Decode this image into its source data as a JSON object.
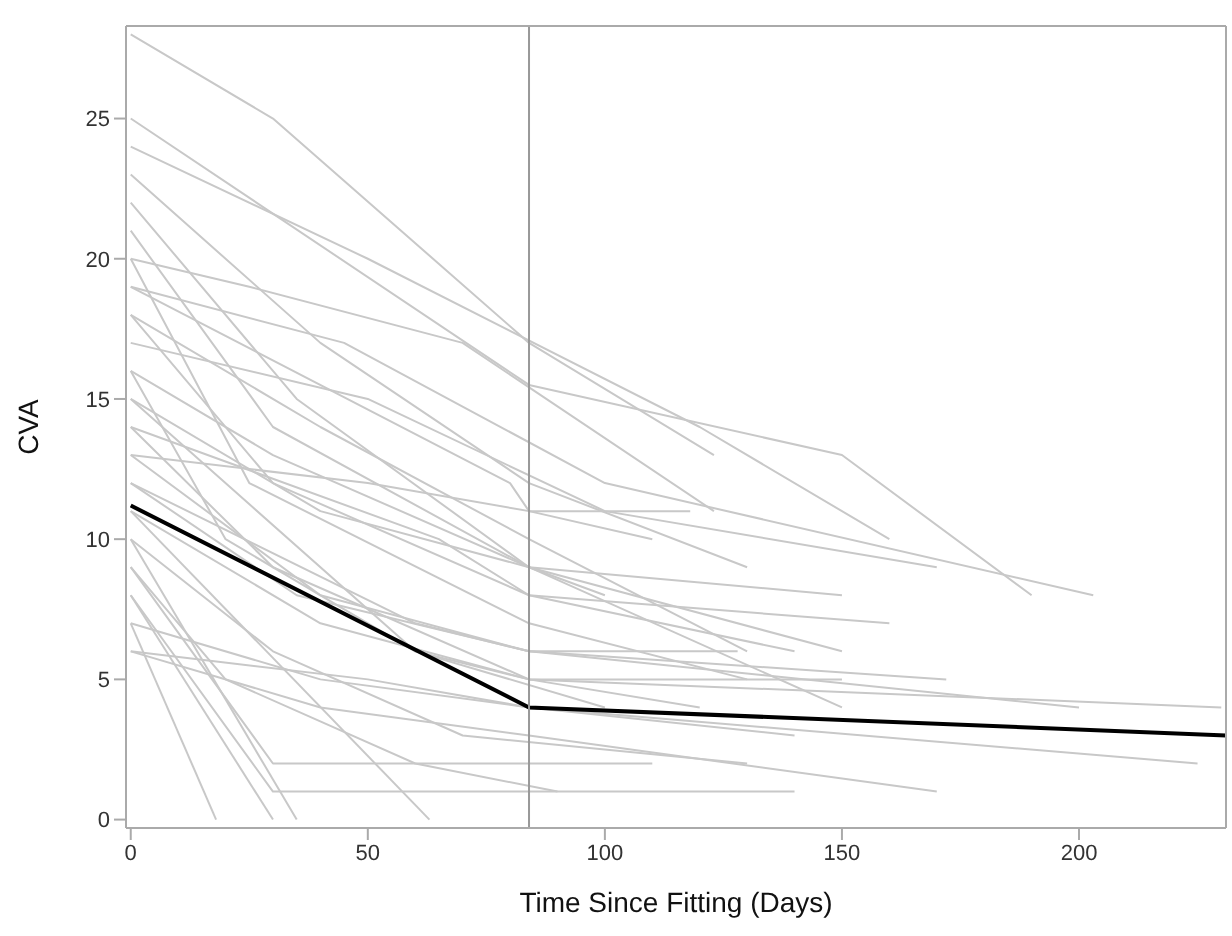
{
  "chart_data": {
    "type": "line",
    "xlabel": "Time Since Fitting (Days)",
    "ylabel": "CVA",
    "xlim": [
      -1,
      231
    ],
    "xticks": [
      0,
      50,
      100,
      150,
      200
    ],
    "ylim": [
      -0.3,
      28.3
    ],
    "yticks": [
      0,
      5,
      10,
      15,
      20,
      25
    ],
    "marker": "none",
    "line_style": "solid",
    "ref_lines": [
      {
        "axis": "x",
        "value": 84,
        "color": "#999999"
      }
    ],
    "series": [
      {
        "color": "#c8c8c8",
        "x": [
          0,
          30,
          84,
          123
        ],
        "values": [
          28,
          25,
          17,
          13
        ]
      },
      {
        "color": "#c8c8c8",
        "x": [
          0,
          84,
          150,
          190
        ],
        "values": [
          25,
          15.5,
          13,
          8
        ]
      },
      {
        "color": "#c8c8c8",
        "x": [
          0,
          50,
          120,
          160
        ],
        "values": [
          24,
          20,
          14,
          10
        ]
      },
      {
        "color": "#c8c8c8",
        "x": [
          0,
          40,
          84,
          130
        ],
        "values": [
          23,
          17,
          12,
          9
        ]
      },
      {
        "color": "#c8c8c8",
        "x": [
          0,
          30,
          84,
          150
        ],
        "values": [
          21,
          14,
          9,
          6
        ]
      },
      {
        "color": "#c8c8c8",
        "x": [
          0,
          25,
          70,
          123
        ],
        "values": [
          20,
          19,
          17,
          11
        ]
      },
      {
        "color": "#c8c8c8",
        "x": [
          0,
          45,
          100,
          203
        ],
        "values": [
          19,
          17,
          12,
          8
        ]
      },
      {
        "color": "#c8c8c8",
        "x": [
          0,
          30,
          84,
          140
        ],
        "values": [
          18,
          12,
          8,
          6
        ]
      },
      {
        "color": "#c8c8c8",
        "x": [
          0,
          50,
          100,
          170
        ],
        "values": [
          17,
          15,
          11,
          9
        ]
      },
      {
        "color": "#c8c8c8",
        "x": [
          0,
          20,
          60,
          100
        ],
        "values": [
          16,
          10,
          6,
          4
        ]
      },
      {
        "color": "#c8c8c8",
        "x": [
          0,
          40,
          84,
          150
        ],
        "values": [
          15,
          11,
          9,
          4
        ]
      },
      {
        "color": "#c8c8c8",
        "x": [
          0,
          30,
          84,
          120
        ],
        "values": [
          14,
          9,
          5,
          4
        ]
      },
      {
        "color": "#c8c8c8",
        "x": [
          0,
          50,
          84,
          110
        ],
        "values": [
          13,
          12,
          11,
          10
        ]
      },
      {
        "color": "#c8c8c8",
        "x": [
          0,
          35,
          84,
          200
        ],
        "values": [
          12,
          8,
          6,
          4
        ]
      },
      {
        "color": "#c8c8c8",
        "x": [
          0,
          40,
          84,
          230
        ],
        "values": [
          11,
          7,
          5,
          4
        ]
      },
      {
        "color": "#c8c8c8",
        "x": [
          0,
          30,
          70,
          130
        ],
        "values": [
          10,
          6,
          3,
          2
        ]
      },
      {
        "color": "#c8c8c8",
        "x": [
          0,
          20,
          60,
          90
        ],
        "values": [
          9,
          5,
          2,
          1
        ]
      },
      {
        "color": "#c8c8c8",
        "x": [
          0,
          30
        ],
        "values": [
          8,
          0
        ]
      },
      {
        "color": "#c8c8c8",
        "x": [
          0,
          18
        ],
        "values": [
          7,
          0
        ]
      },
      {
        "color": "#c8c8c8",
        "x": [
          0,
          40,
          84,
          170
        ],
        "values": [
          6,
          4,
          3,
          1
        ]
      },
      {
        "color": "#c8c8c8",
        "x": [
          0,
          50,
          84,
          225
        ],
        "values": [
          6,
          5,
          4,
          2
        ]
      },
      {
        "color": "#c8c8c8",
        "x": [
          0,
          35
        ],
        "values": [
          10,
          0
        ]
      },
      {
        "color": "#c8c8c8",
        "x": [
          0,
          60,
          84,
          172
        ],
        "values": [
          12,
          7,
          6,
          5
        ]
      },
      {
        "color": "#c8c8c8",
        "x": [
          0,
          65,
          84,
          160
        ],
        "values": [
          14,
          10,
          8,
          7
        ]
      },
      {
        "color": "#c8c8c8",
        "x": [
          0,
          40,
          84,
          130
        ],
        "values": [
          18,
          14,
          10,
          6
        ]
      },
      {
        "color": "#c8c8c8",
        "x": [
          0,
          25,
          84,
          130
        ],
        "values": [
          20,
          12,
          7,
          5
        ]
      },
      {
        "color": "#c8c8c8",
        "x": [
          0,
          63
        ],
        "values": [
          11,
          0
        ]
      },
      {
        "color": "#c8c8c8",
        "x": [
          0,
          30,
          60,
          110
        ],
        "values": [
          9,
          2,
          2,
          2
        ]
      },
      {
        "color": "#c8c8c8",
        "x": [
          0,
          30,
          140
        ],
        "values": [
          8,
          1,
          1
        ]
      },
      {
        "color": "#c8c8c8",
        "x": [
          0,
          40,
          84,
          128
        ],
        "values": [
          13,
          8,
          6,
          6
        ]
      },
      {
        "color": "#c8c8c8",
        "x": [
          0,
          30,
          84,
          150
        ],
        "values": [
          16,
          13,
          9,
          8
        ]
      },
      {
        "color": "#c8c8c8",
        "x": [
          0,
          60,
          84,
          150
        ],
        "values": [
          15,
          6,
          5,
          5
        ]
      },
      {
        "color": "#c8c8c8",
        "x": [
          0,
          40,
          84,
          140
        ],
        "values": [
          7,
          5,
          4,
          3
        ]
      },
      {
        "color": "#c8c8c8",
        "x": [
          0,
          80,
          84,
          118
        ],
        "values": [
          19,
          12,
          11,
          11
        ]
      },
      {
        "color": "#c8c8c8",
        "x": [
          0,
          35,
          84,
          100
        ],
        "values": [
          22,
          15,
          9,
          8
        ]
      },
      {
        "color": "#000000",
        "x": [
          0,
          84,
          231
        ],
        "values": [
          11.2,
          4,
          3
        ]
      }
    ]
  }
}
